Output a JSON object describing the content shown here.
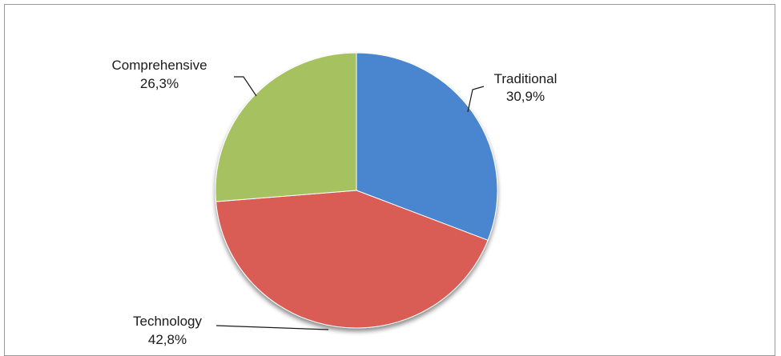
{
  "chart_data": {
    "type": "pie",
    "slices": [
      {
        "label": "Traditional",
        "pct_label": "30,9%",
        "value": 30.9,
        "color": "#4a86cf"
      },
      {
        "label": "Technology",
        "pct_label": "42,8%",
        "value": 42.8,
        "color": "#d95b55"
      },
      {
        "label": "Comprehensive",
        "pct_label": "26,3%",
        "value": 26.3,
        "color": "#a6c160"
      }
    ],
    "legend": "none"
  }
}
